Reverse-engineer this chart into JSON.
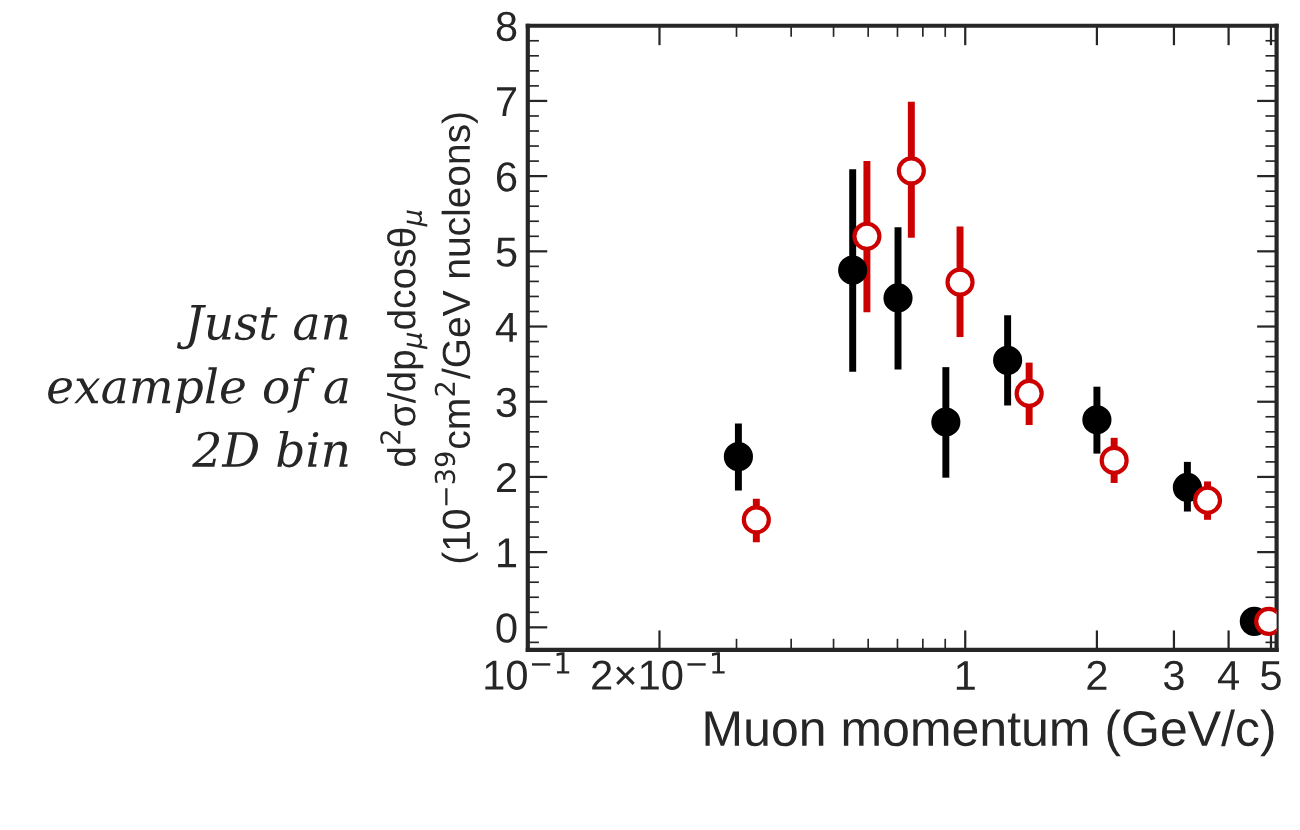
{
  "chart_data": {
    "type": "scatter",
    "xlabel": "Muon momentum (GeV/c)",
    "ylabel": "d$^{2}$σ/dp$_{μ}$dcosθ$_{μ}$\n(10$^{−39}$cm$^{2}$/GeV nucleons)",
    "annotations": [
      "Just an\nexample of a\n2D bin"
    ],
    "log": "x",
    "marker": "circle",
    "xlim": [
      0.1,
      5.15
    ],
    "xticks": [
      {
        "value": 0.1,
        "label": "10$^{−1}$"
      },
      {
        "value": 0.2,
        "label": "2×10$^{−1}$"
      },
      1,
      2,
      3,
      4,
      5
    ],
    "ylim": [
      -0.3,
      8
    ],
    "yticks": [
      0,
      1,
      2,
      3,
      4,
      5,
      6,
      7,
      8
    ],
    "grid": false,
    "series": [
      {
        "color": "#000000",
        "x": [
          0.303,
          0.553,
          0.702,
          0.903,
          1.25,
          2.0,
          3.22,
          4.58
        ],
        "values": [
          2.27,
          4.75,
          4.38,
          2.73,
          3.55,
          2.76,
          1.86,
          0.08
        ],
        "errors": [
          [
            1.82,
            2.71
          ],
          [
            3.4,
            6.09
          ],
          [
            3.43,
            5.32
          ],
          [
            1.99,
            3.46
          ],
          [
            2.95,
            4.15
          ],
          [
            2.31,
            3.2
          ],
          [
            1.54,
            2.2
          ],
          null
        ]
      },
      {
        "color": "#cc0000",
        "x": [
          0.333,
          0.596,
          0.753,
          0.973,
          1.4,
          2.19,
          3.58,
          4.94
        ],
        "values": [
          1.43,
          5.2,
          6.07,
          4.59,
          3.11,
          2.22,
          1.69,
          0.08
        ],
        "errors": [
          [
            1.13,
            1.71
          ],
          [
            4.19,
            6.2
          ],
          [
            5.18,
            6.99
          ],
          [
            3.86,
            5.33
          ],
          [
            2.69,
            3.52
          ],
          [
            1.92,
            2.52
          ],
          [
            1.43,
            1.94
          ],
          null
        ]
      }
    ]
  }
}
